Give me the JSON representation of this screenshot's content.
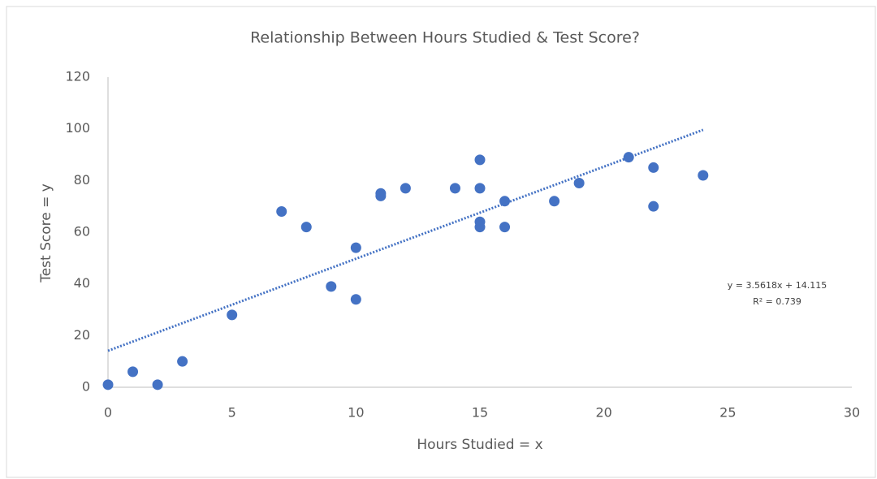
{
  "chart_data": {
    "type": "scatter",
    "title": "Relationship Between Hours Studied & Test Score?",
    "x_label": "Hours Studied = x",
    "y_label": "Test Score = y",
    "x": [
      0,
      1,
      2,
      3,
      5,
      7,
      8,
      9,
      10,
      10,
      11,
      11,
      12,
      14,
      15,
      15,
      15,
      15,
      16,
      16,
      18,
      19,
      21,
      22,
      22,
      24
    ],
    "values": [
      1,
      6,
      1,
      10,
      28,
      68,
      62,
      39,
      54,
      34,
      75,
      74,
      77,
      77,
      88,
      77,
      64,
      62,
      72,
      62,
      72,
      79,
      89,
      85,
      70,
      82
    ],
    "color": "#4472c4",
    "xlim": [
      0,
      30
    ],
    "xticks": [
      0,
      5,
      10,
      15,
      20,
      25,
      30
    ],
    "ylim": [
      0,
      120
    ],
    "yticks": [
      0,
      20,
      40,
      60,
      80,
      100,
      120
    ],
    "grid": false,
    "trendline": {
      "slope": 3.5618,
      "intercept": 14.115,
      "equation": "y = 3.5618x + 14.115",
      "r_squared": "R² = 0.739"
    }
  }
}
